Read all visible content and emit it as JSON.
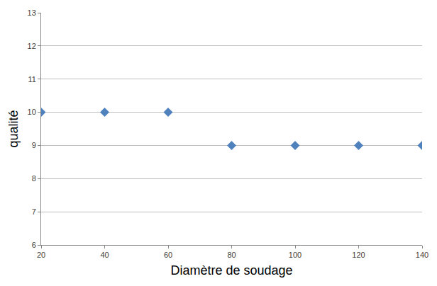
{
  "chart_data": {
    "type": "scatter",
    "x_label": "Diamètre de soudage",
    "y_label": "qualité",
    "x": [
      20,
      40,
      60,
      80,
      100,
      120,
      140
    ],
    "values": [
      10,
      10,
      10,
      9,
      9,
      9,
      9
    ],
    "color": "#4f81bd",
    "marker": "diamond",
    "xlim": [
      20,
      140
    ],
    "xticks": [
      20,
      40,
      60,
      80,
      100,
      120,
      140
    ],
    "ylim": [
      6,
      13
    ],
    "yticks": [
      6,
      7,
      8,
      9,
      10,
      11,
      12,
      13
    ],
    "grid": true
  }
}
